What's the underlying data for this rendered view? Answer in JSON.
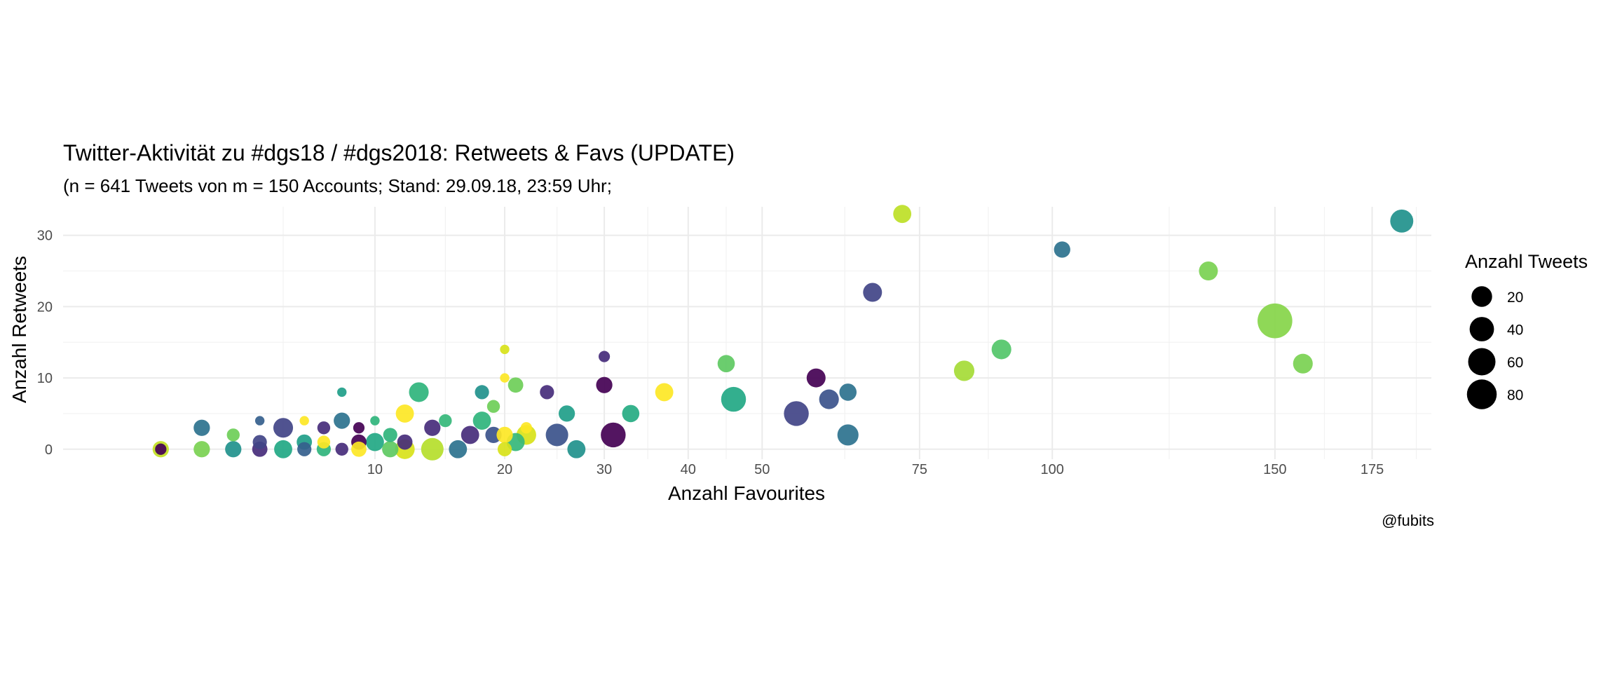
{
  "chart_data": {
    "type": "scatter",
    "title": "Twitter-Aktivität zu #dgs18 / #dgs2018: Retweets & Favs (UPDATE)",
    "subtitle": "(n = 641 Tweets von m = 150 Accounts; Stand: 29.09.18, 23:59 Uhr;",
    "xlabel": "Anzahl Favourites",
    "ylabel": "Anzahl Retweets",
    "caption": "@fubits",
    "x_scale": "sqrt",
    "xlim": [
      0,
      190
    ],
    "ylim": [
      0,
      34
    ],
    "x_ticks": [
      10,
      20,
      30,
      40,
      50,
      75,
      100,
      150,
      175
    ],
    "y_ticks": [
      0,
      10,
      20,
      30
    ],
    "grid": true,
    "legend": {
      "title": "Anzahl Tweets",
      "placement": "right",
      "sizes": [
        20,
        40,
        60,
        80
      ]
    },
    "points": [
      {
        "x": 72,
        "y": 33,
        "size": 8,
        "color": "#bddf26"
      },
      {
        "x": 183,
        "y": 32,
        "size": 15,
        "color": "#21918c"
      },
      {
        "x": 102,
        "y": 28,
        "size": 6,
        "color": "#2c728e"
      },
      {
        "x": 134,
        "y": 25,
        "size": 9,
        "color": "#7ad151"
      },
      {
        "x": 67,
        "y": 22,
        "size": 9,
        "color": "#414487"
      },
      {
        "x": 150,
        "y": 18,
        "size": 40,
        "color": "#86d549"
      },
      {
        "x": 90,
        "y": 14,
        "size": 10,
        "color": "#52c569"
      },
      {
        "x": 45,
        "y": 12,
        "size": 7,
        "color": "#5ec962"
      },
      {
        "x": 157,
        "y": 12,
        "size": 10,
        "color": "#7ad151"
      },
      {
        "x": 83,
        "y": 11,
        "size": 11,
        "color": "#a5db36"
      },
      {
        "x": 58,
        "y": 10,
        "size": 9,
        "color": "#440154"
      },
      {
        "x": 20,
        "y": 14,
        "size": 1,
        "color": "#d8e219"
      },
      {
        "x": 30,
        "y": 13,
        "size": 2,
        "color": "#472d7b"
      },
      {
        "x": 20,
        "y": 10,
        "size": 1,
        "color": "#fde725"
      },
      {
        "x": 21,
        "y": 9,
        "size": 5,
        "color": "#6ece58"
      },
      {
        "x": 30,
        "y": 9,
        "size": 6,
        "color": "#440154"
      },
      {
        "x": 37,
        "y": 8,
        "size": 8,
        "color": "#fde725"
      },
      {
        "x": 63,
        "y": 8,
        "size": 7,
        "color": "#2c728e"
      },
      {
        "x": 13,
        "y": 8,
        "size": 10,
        "color": "#2fb47c"
      },
      {
        "x": 18,
        "y": 8,
        "size": 4,
        "color": "#21918c"
      },
      {
        "x": 24,
        "y": 8,
        "size": 4,
        "color": "#472d7b"
      },
      {
        "x": 8,
        "y": 8,
        "size": 1,
        "color": "#1f9e89"
      },
      {
        "x": 46,
        "y": 7,
        "size": 18,
        "color": "#22a884"
      },
      {
        "x": 60,
        "y": 7,
        "size": 10,
        "color": "#3b528b"
      },
      {
        "x": 19,
        "y": 6,
        "size": 3,
        "color": "#6ece58"
      },
      {
        "x": 55,
        "y": 5,
        "size": 18,
        "color": "#414487"
      },
      {
        "x": 33,
        "y": 5,
        "size": 7,
        "color": "#25ab82"
      },
      {
        "x": 26,
        "y": 5,
        "size": 6,
        "color": "#1f9e89"
      },
      {
        "x": 12,
        "y": 5,
        "size": 8,
        "color": "#fde725"
      },
      {
        "x": 15,
        "y": 4,
        "size": 3,
        "color": "#35b779"
      },
      {
        "x": 18,
        "y": 4,
        "size": 8,
        "color": "#2fb47c"
      },
      {
        "x": 8,
        "y": 4,
        "size": 6,
        "color": "#2c728e"
      },
      {
        "x": 4,
        "y": 4,
        "size": 1,
        "color": "#355f8d"
      },
      {
        "x": 6,
        "y": 4,
        "size": 1,
        "color": "#fde725"
      },
      {
        "x": 10,
        "y": 4,
        "size": 1,
        "color": "#2fb47c"
      },
      {
        "x": 2,
        "y": 3,
        "size": 6,
        "color": "#2c728e"
      },
      {
        "x": 5,
        "y": 3,
        "size": 10,
        "color": "#414487"
      },
      {
        "x": 7,
        "y": 3,
        "size": 3,
        "color": "#472d7b"
      },
      {
        "x": 9,
        "y": 3,
        "size": 2,
        "color": "#440154"
      },
      {
        "x": 14,
        "y": 3,
        "size": 6,
        "color": "#472d7b"
      },
      {
        "x": 22,
        "y": 3,
        "size": 2,
        "color": "#fde725"
      },
      {
        "x": 31,
        "y": 2,
        "size": 18,
        "color": "#440154"
      },
      {
        "x": 63,
        "y": 2,
        "size": 12,
        "color": "#2c728e"
      },
      {
        "x": 25,
        "y": 2,
        "size": 14,
        "color": "#3b528b"
      },
      {
        "x": 22,
        "y": 2,
        "size": 10,
        "color": "#d8e219"
      },
      {
        "x": 17,
        "y": 2,
        "size": 8,
        "color": "#472d7b"
      },
      {
        "x": 19,
        "y": 2,
        "size": 6,
        "color": "#3b528b"
      },
      {
        "x": 20,
        "y": 2,
        "size": 6,
        "color": "#fde725"
      },
      {
        "x": 11,
        "y": 2,
        "size": 4,
        "color": "#2fb47c"
      },
      {
        "x": 3,
        "y": 2,
        "size": 3,
        "color": "#6ece58"
      },
      {
        "x": 21,
        "y": 1,
        "size": 8,
        "color": "#35b779"
      },
      {
        "x": 6,
        "y": 1,
        "size": 5,
        "color": "#1f9e89"
      },
      {
        "x": 7,
        "y": 1,
        "size": 3,
        "color": "#fde725"
      },
      {
        "x": 9,
        "y": 1,
        "size": 5,
        "color": "#440154"
      },
      {
        "x": 10,
        "y": 1,
        "size": 8,
        "color": "#22a884"
      },
      {
        "x": 12,
        "y": 1,
        "size": 5,
        "color": "#472d7b"
      },
      {
        "x": 4,
        "y": 1,
        "size": 4,
        "color": "#414487"
      },
      {
        "x": 27,
        "y": 0,
        "size": 8,
        "color": "#21918c"
      },
      {
        "x": 14,
        "y": 0,
        "size": 14,
        "color": "#b5de2b"
      },
      {
        "x": 16,
        "y": 0,
        "size": 8,
        "color": "#2c728e"
      },
      {
        "x": 20,
        "y": 0,
        "size": 4,
        "color": "#d8e219"
      },
      {
        "x": 12,
        "y": 0,
        "size": 10,
        "color": "#d8e219"
      },
      {
        "x": 11,
        "y": 0,
        "size": 6,
        "color": "#5ec962"
      },
      {
        "x": 9,
        "y": 0,
        "size": 5,
        "color": "#fde725"
      },
      {
        "x": 8,
        "y": 0,
        "size": 3,
        "color": "#472d7b"
      },
      {
        "x": 7,
        "y": 0,
        "size": 4,
        "color": "#2fb47c"
      },
      {
        "x": 6,
        "y": 0,
        "size": 4,
        "color": "#355f8d"
      },
      {
        "x": 5,
        "y": 0,
        "size": 8,
        "color": "#22a884"
      },
      {
        "x": 4,
        "y": 0,
        "size": 5,
        "color": "#472d7b"
      },
      {
        "x": 3,
        "y": 0,
        "size": 6,
        "color": "#21918c"
      },
      {
        "x": 2,
        "y": 0,
        "size": 6,
        "color": "#7ad151"
      },
      {
        "x": 1,
        "y": 0,
        "size": 6,
        "color": "#c2df23"
      },
      {
        "x": 1,
        "y": 0,
        "size": 2,
        "color": "#440154"
      }
    ]
  }
}
